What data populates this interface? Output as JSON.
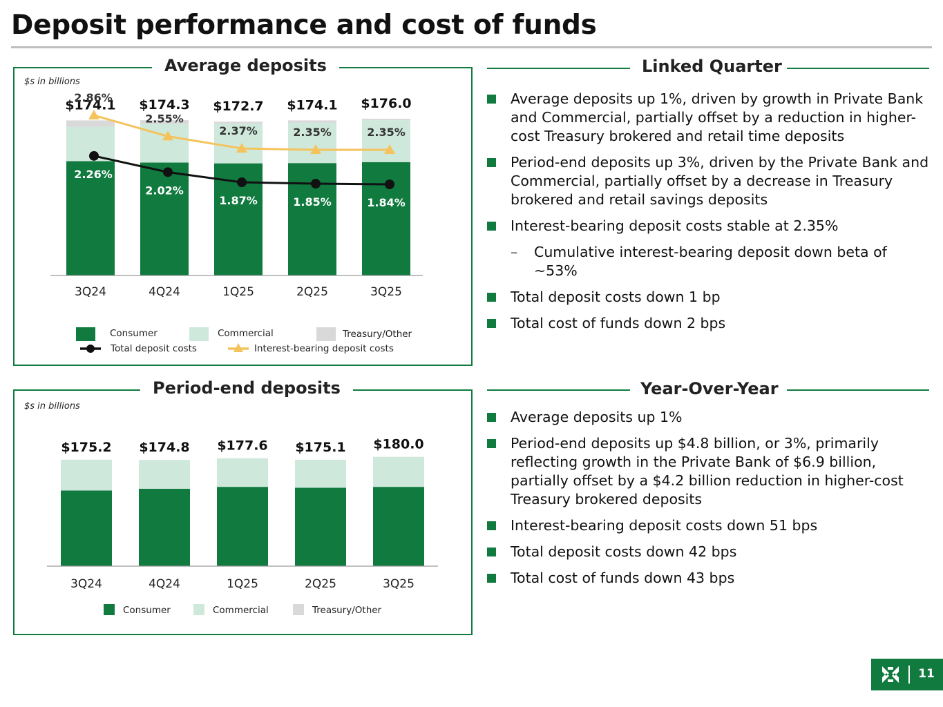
{
  "page": {
    "title": "Deposit performance and cost of funds",
    "page_number": "11"
  },
  "avg_panel": {
    "title": "Average deposits",
    "units": "$s in billions",
    "legend": {
      "consumer": "Consumer",
      "commercial": "Commercial",
      "treasury": "Treasury/Other",
      "total_costs": "Total deposit costs",
      "ib_costs": "Interest-bearing deposit costs"
    }
  },
  "pe_panel": {
    "title": "Period-end deposits",
    "units": "$s in billions",
    "legend": {
      "consumer": "Consumer",
      "commercial": "Commercial",
      "treasury": "Treasury/Other"
    }
  },
  "linked_quarter": {
    "title": "Linked Quarter",
    "bullets": [
      {
        "text": "Average deposits up 1%, driven by growth in Private Bank and Commercial, partially offset by a reduction in higher-cost Treasury brokered and retail time deposits",
        "sub": false
      },
      {
        "text": "Period-end deposits up 3%, driven by the Private Bank and Commercial, partially offset by a decrease in Treasury brokered and retail savings deposits",
        "sub": false
      },
      {
        "text": "Interest-bearing deposit costs stable at 2.35%",
        "sub": false
      },
      {
        "text": "Cumulative interest-bearing deposit down beta of ~53%",
        "sub": true
      },
      {
        "text": "Total deposit costs down 1 bp",
        "sub": false
      },
      {
        "text": "Total cost of funds down 2 bps",
        "sub": false
      }
    ]
  },
  "year_over_year": {
    "title": "Year-Over-Year",
    "bullets": [
      {
        "text": "Average deposits up 1%",
        "sub": false
      },
      {
        "text": "Period-end deposits up $4.8 billion, or 3%, primarily reflecting growth in the Private Bank of $6.9 billion, partially offset by a $4.2 billion reduction in higher-cost Treasury brokered deposits",
        "sub": false
      },
      {
        "text": "Interest-bearing deposit costs down 51 bps",
        "sub": false
      },
      {
        "text": "Total deposit costs down 42 bps",
        "sub": false
      },
      {
        "text": "Total cost of funds down 43 bps",
        "sub": false
      }
    ]
  },
  "colors": {
    "consumer": "#107a3f",
    "commercial": "#cfe8dc",
    "treasury": "#d9d9d9",
    "total_costs_line": "#111111",
    "ib_costs_line": "#f4c35c",
    "accent": "#107a3f"
  },
  "chart_data": [
    {
      "type": "bar",
      "title": "Average deposits",
      "units": "$s in billions",
      "stacked": true,
      "categories": [
        "3Q24",
        "4Q24",
        "1Q25",
        "2Q25",
        "3Q25"
      ],
      "ylim": [
        0,
        185
      ],
      "totals": [
        174.1,
        174.3,
        172.7,
        174.1,
        176.0
      ],
      "total_labels": [
        "$174.1",
        "$174.3",
        "$172.7",
        "$174.1",
        "$176.0"
      ],
      "series": [
        {
          "name": "Consumer",
          "values": [
            128.4,
            126.8,
            125.9,
            126.2,
            127.3
          ]
        },
        {
          "name": "Commercial",
          "values": [
            38.5,
            43.3,
            44.5,
            45.4,
            47.0
          ]
        },
        {
          "name": "Treasury/Other",
          "values": [
            7.2,
            4.2,
            2.3,
            2.5,
            1.7
          ]
        }
      ],
      "lines": [
        {
          "name": "Interest-bearing deposit costs",
          "values": [
            2.86,
            2.55,
            2.37,
            2.35,
            2.35
          ],
          "labels": [
            "2.86%",
            "2.55%",
            "2.37%",
            "2.35%",
            "2.35%"
          ]
        },
        {
          "name": "Total deposit costs",
          "values": [
            2.26,
            2.02,
            1.87,
            1.85,
            1.84
          ],
          "labels": [
            "2.26%",
            "2.02%",
            "1.87%",
            "1.85%",
            "1.84%"
          ]
        }
      ],
      "legend": "bottom"
    },
    {
      "type": "bar",
      "title": "Period-end deposits",
      "units": "$s in billions",
      "stacked": true,
      "categories": [
        "3Q24",
        "4Q24",
        "1Q25",
        "2Q25",
        "3Q25"
      ],
      "ylim": [
        0,
        185
      ],
      "totals": [
        175.2,
        174.8,
        177.6,
        175.1,
        180.0
      ],
      "total_labels": [
        "$175.2",
        "$174.8",
        "$177.6",
        "$175.1",
        "$180.0"
      ],
      "series": [
        {
          "name": "Consumer",
          "values": [
            124.5,
            127.5,
            130.5,
            129.0,
            130.5
          ]
        },
        {
          "name": "Commercial",
          "values": [
            50.5,
            47.1,
            46.9,
            46.0,
            49.3
          ]
        },
        {
          "name": "Treasury/Other",
          "values": [
            0.2,
            0.2,
            0.2,
            0.1,
            0.2
          ]
        }
      ],
      "legend": "bottom"
    }
  ]
}
